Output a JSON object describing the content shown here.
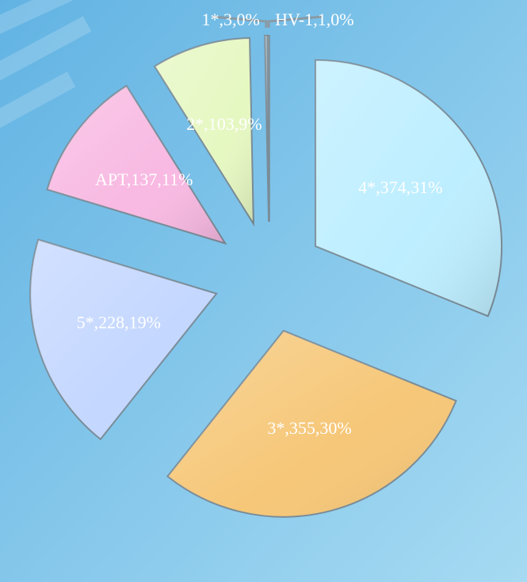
{
  "chart_data": {
    "type": "pie",
    "values": [
      374,
      355,
      228,
      137,
      103,
      3,
      1
    ],
    "value_labels": [
      "4*,374,31%",
      "3*,355,30%",
      "5*,228,19%",
      "APT,137,11%",
      "2*,103,9%",
      "1*,3,0%",
      "HV-1,1,0%"
    ],
    "colors": [
      "#bdeeff",
      "#f6c778",
      "#c4d7ff",
      "#f8b9e2",
      "#e6f8c2",
      "#9aa8b0",
      "#9aa8b0"
    ]
  }
}
